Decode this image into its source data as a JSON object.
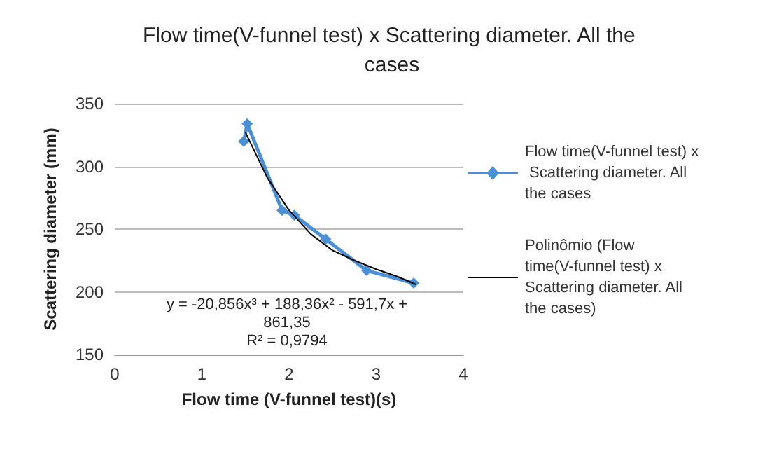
{
  "chart_data": {
    "type": "line",
    "title": "Flow time(V-funnel test) x Scattering diameter. All the cases",
    "xlabel": "Flow time (V-funnel test)(s)",
    "ylabel": "Scattering diameter (mm)",
    "annotations": [
      "y = -20,856x³ + 188,36x² - 591,7x + 861,35",
      "R² = 0,9794"
    ],
    "xlim": [
      0,
      4
    ],
    "xticks": [
      0,
      1,
      2,
      3,
      4
    ],
    "ylim": [
      150,
      350
    ],
    "yticks": [
      150,
      200,
      250,
      300,
      350
    ],
    "grid": "y",
    "legend": "right",
    "marker": "diamond",
    "line_style": "solid",
    "series": [
      {
        "name": "Flow time(V-funnel test) x Scattering diameter. All the cases",
        "color": "#4a90d9",
        "x": [
          1.48,
          1.52,
          1.92,
          2.06,
          2.42,
          2.89,
          3.43
        ],
        "values": [
          320,
          334,
          265,
          261,
          242,
          217,
          207
        ]
      },
      {
        "name": "Polinômio (Flow time(V-funnel test) x Scattering diameter. All the cases)",
        "color": "#000000",
        "marker": "none",
        "x": [
          1.5,
          1.75,
          2,
          2.25,
          2.5,
          2.75,
          3,
          3.25,
          3.45
        ],
        "values": [
          327,
          291,
          265,
          246,
          233,
          225,
          218,
          212,
          206
        ]
      }
    ]
  }
}
